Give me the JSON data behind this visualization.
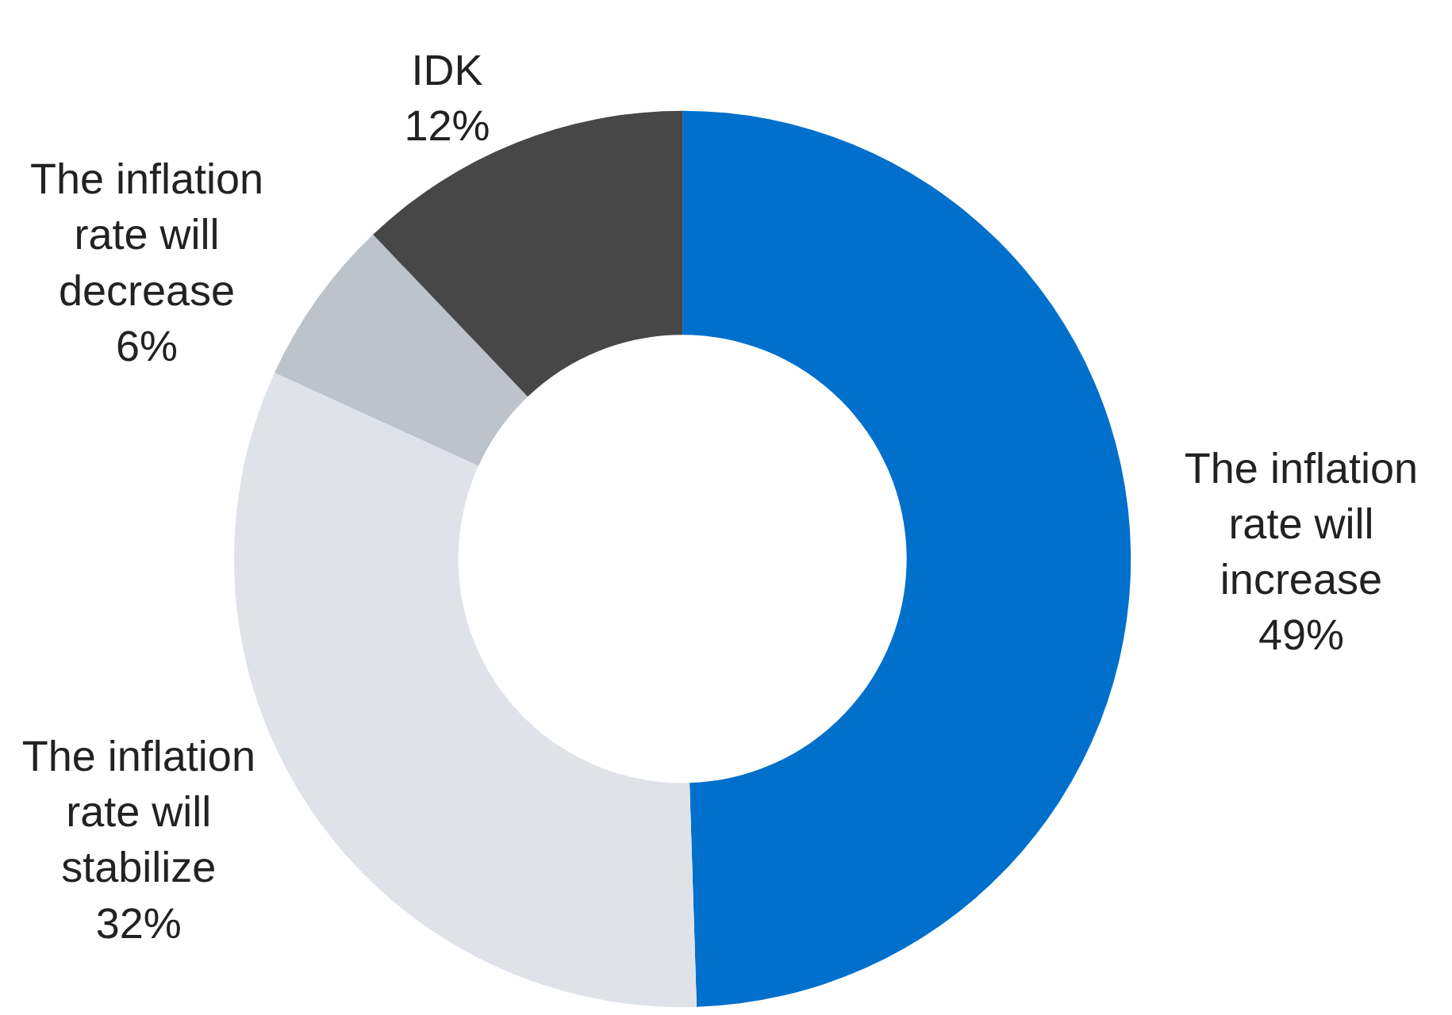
{
  "chart_data": {
    "type": "donut",
    "categories": [
      "The inflation rate will increase",
      "The inflation rate will stabilize",
      "The inflation rate will decrease",
      "IDK"
    ],
    "values": [
      49,
      32,
      6,
      12
    ],
    "value_labels": [
      "49%",
      "32%",
      "6%",
      "12%"
    ],
    "colors": [
      "#0070cc",
      "#dfe2e8",
      "#bcc3cb",
      "#474747"
    ],
    "legend": false
  }
}
